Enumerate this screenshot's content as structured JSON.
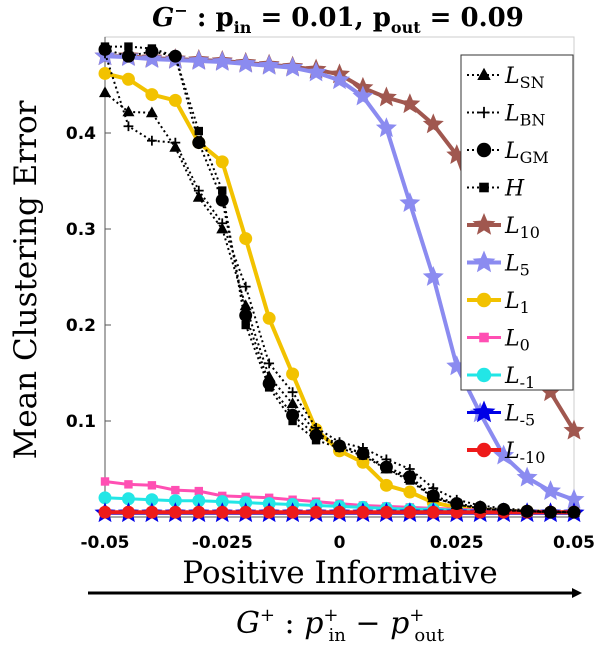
{
  "chart_data": {
    "type": "line",
    "title": {
      "g_label": "G",
      "g_sup": "−",
      "mid": " : ",
      "pin": "p",
      "pin_sub": "in",
      "pin_val": " = 0.01,  ",
      "pout": "p",
      "pout_sub": "out",
      "pout_val": " = 0.09"
    },
    "ylabel": "Mean Clustering Error",
    "xlabel": "Positive Informative",
    "xlabel2": {
      "g": "G",
      "g_sup": "+",
      "colon": " : ",
      "p1": "p",
      "p1_sup": "+",
      "p1_sub": "in",
      "minus": " − ",
      "p2": "p",
      "p2_sup": "+",
      "p2_sub": "out"
    },
    "xlim": [
      -0.05,
      0.05
    ],
    "ylim": [
      0,
      0.5
    ],
    "xticks": [
      {
        "v": -0.05,
        "label": "-0.05"
      },
      {
        "v": -0.025,
        "label": "-0.025"
      },
      {
        "v": 0,
        "label": "0"
      },
      {
        "v": 0.025,
        "label": "0.025"
      },
      {
        "v": 0.05,
        "label": "0.05"
      }
    ],
    "yticks": [
      {
        "v": 0.1,
        "label": "0.1"
      },
      {
        "v": 0.2,
        "label": "0.2"
      },
      {
        "v": 0.3,
        "label": "0.3"
      },
      {
        "v": 0.4,
        "label": "0.4"
      }
    ],
    "grid": false,
    "legend_position": "top-right",
    "x": [
      -0.05,
      -0.045,
      -0.04,
      -0.035,
      -0.03,
      -0.025,
      -0.02,
      -0.015,
      -0.01,
      -0.005,
      0,
      0.005,
      0.01,
      0.015,
      0.02,
      0.025,
      0.03,
      0.035,
      0.04,
      0.045,
      0.05
    ],
    "series": [
      {
        "key": "L10",
        "name": "L",
        "sub": "10",
        "sup": "",
        "color": "#a0574f",
        "marker": "star",
        "style": "solid",
        "width": 4,
        "values": [
          0.48,
          0.48,
          0.478,
          0.477,
          0.476,
          0.475,
          0.473,
          0.471,
          0.469,
          0.466,
          0.461,
          0.447,
          0.437,
          0.43,
          0.409,
          0.377,
          0.31,
          0.24,
          0.173,
          0.13,
          0.09
        ]
      },
      {
        "key": "L5",
        "name": "L",
        "sub": "5",
        "sup": "",
        "color": "#8b8bf0",
        "marker": "star",
        "style": "solid",
        "width": 4,
        "values": [
          0.48,
          0.479,
          0.477,
          0.476,
          0.475,
          0.474,
          0.472,
          0.47,
          0.468,
          0.463,
          0.455,
          0.438,
          0.405,
          0.327,
          0.25,
          0.157,
          0.108,
          0.064,
          0.041,
          0.027,
          0.018
        ]
      },
      {
        "key": "L1",
        "name": "L",
        "sub": "1",
        "sup": "",
        "color": "#f2c200",
        "marker": "circle",
        "style": "solid",
        "width": 4,
        "values": [
          0.462,
          0.456,
          0.44,
          0.434,
          0.39,
          0.37,
          0.29,
          0.207,
          0.149,
          0.091,
          0.069,
          0.057,
          0.033,
          0.026,
          0.015,
          0.01,
          0.008,
          0.006,
          0.006,
          0.005,
          0.005
        ]
      },
      {
        "key": "L0",
        "name": "L",
        "sub": "0",
        "sup": "",
        "color": "#ff4fb3",
        "marker": "square",
        "style": "solid",
        "width": 3,
        "values": [
          0.037,
          0.034,
          0.033,
          0.028,
          0.027,
          0.022,
          0.021,
          0.02,
          0.018,
          0.016,
          0.014,
          0.012,
          0.011,
          0.01,
          0.009,
          0.008,
          0.007,
          0.006,
          0.006,
          0.005,
          0.005
        ]
      },
      {
        "key": "Lm1",
        "name": "L",
        "sub": "-1",
        "sup": "",
        "color": "#22e6e6",
        "marker": "circle",
        "style": "solid",
        "width": 3,
        "values": [
          0.02,
          0.019,
          0.018,
          0.017,
          0.017,
          0.016,
          0.015,
          0.014,
          0.013,
          0.012,
          0.011,
          0.01,
          0.009,
          0.008,
          0.008,
          0.007,
          0.006,
          0.006,
          0.005,
          0.005,
          0.005
        ]
      },
      {
        "key": "Lm5",
        "name": "L",
        "sub": "-5",
        "sup": "",
        "color": "#0000e6",
        "marker": "star",
        "style": "solid",
        "width": 3,
        "values": [
          0.004,
          0.004,
          0.004,
          0.004,
          0.004,
          0.004,
          0.004,
          0.004,
          0.004,
          0.004,
          0.004,
          0.004,
          0.004,
          0.004,
          0.004,
          0.004,
          0.004,
          0.004,
          0.004,
          0.004,
          0.004
        ]
      },
      {
        "key": "Lm10",
        "name": "L",
        "sub": "-10",
        "sup": "",
        "color": "#ee1a1a",
        "marker": "circle",
        "style": "solid",
        "width": 4,
        "values": [
          0.005,
          0.005,
          0.005,
          0.005,
          0.005,
          0.005,
          0.005,
          0.005,
          0.005,
          0.005,
          0.005,
          0.005,
          0.005,
          0.005,
          0.005,
          0.005,
          0.005,
          0.005,
          0.005,
          0.005,
          0.005
        ]
      },
      {
        "key": "LSN",
        "name": "L",
        "sub": "SN",
        "sup": "",
        "color": "#000000",
        "marker": "triangle",
        "style": "dotted",
        "width": 2,
        "values": [
          0.442,
          0.422,
          0.421,
          0.385,
          0.333,
          0.3,
          0.22,
          0.146,
          0.118,
          0.088,
          0.075,
          0.066,
          0.05,
          0.04,
          0.02,
          0.013,
          0.009,
          0.007,
          0.006,
          0.005,
          0.005
        ]
      },
      {
        "key": "LBN",
        "name": "L",
        "sub": "BN",
        "sup": "",
        "color": "#000000",
        "marker": "plus",
        "style": "dotted",
        "width": 2,
        "values": [
          0.483,
          0.407,
          0.392,
          0.39,
          0.34,
          0.306,
          0.24,
          0.16,
          0.13,
          0.093,
          0.078,
          0.072,
          0.06,
          0.05,
          0.03,
          0.018,
          0.012,
          0.009,
          0.007,
          0.006,
          0.005
        ]
      },
      {
        "key": "LGM",
        "name": "L",
        "sub": "GM",
        "sup": "",
        "color": "#000000",
        "marker": "circle",
        "style": "dotted",
        "width": 2,
        "values": [
          0.487,
          0.48,
          0.485,
          0.48,
          0.39,
          0.33,
          0.21,
          0.139,
          0.106,
          0.085,
          0.074,
          0.066,
          0.052,
          0.042,
          0.022,
          0.014,
          0.01,
          0.008,
          0.006,
          0.005,
          0.005
        ]
      },
      {
        "key": "H",
        "name": "H",
        "sub": "",
        "sup": "",
        "color": "#000000",
        "marker": "square",
        "style": "dotted",
        "width": 2,
        "values": [
          0.49,
          0.49,
          0.488,
          0.48,
          0.402,
          0.34,
          0.2,
          0.135,
          0.1,
          0.08,
          0.072,
          0.064,
          0.05,
          0.038,
          0.02,
          0.013,
          0.009,
          0.007,
          0.006,
          0.005,
          0.005
        ]
      }
    ],
    "legend_order": [
      "LSN",
      "LBN",
      "LGM",
      "H",
      "L10",
      "L5",
      "L1",
      "L0",
      "Lm1",
      "Lm5",
      "Lm10"
    ]
  }
}
